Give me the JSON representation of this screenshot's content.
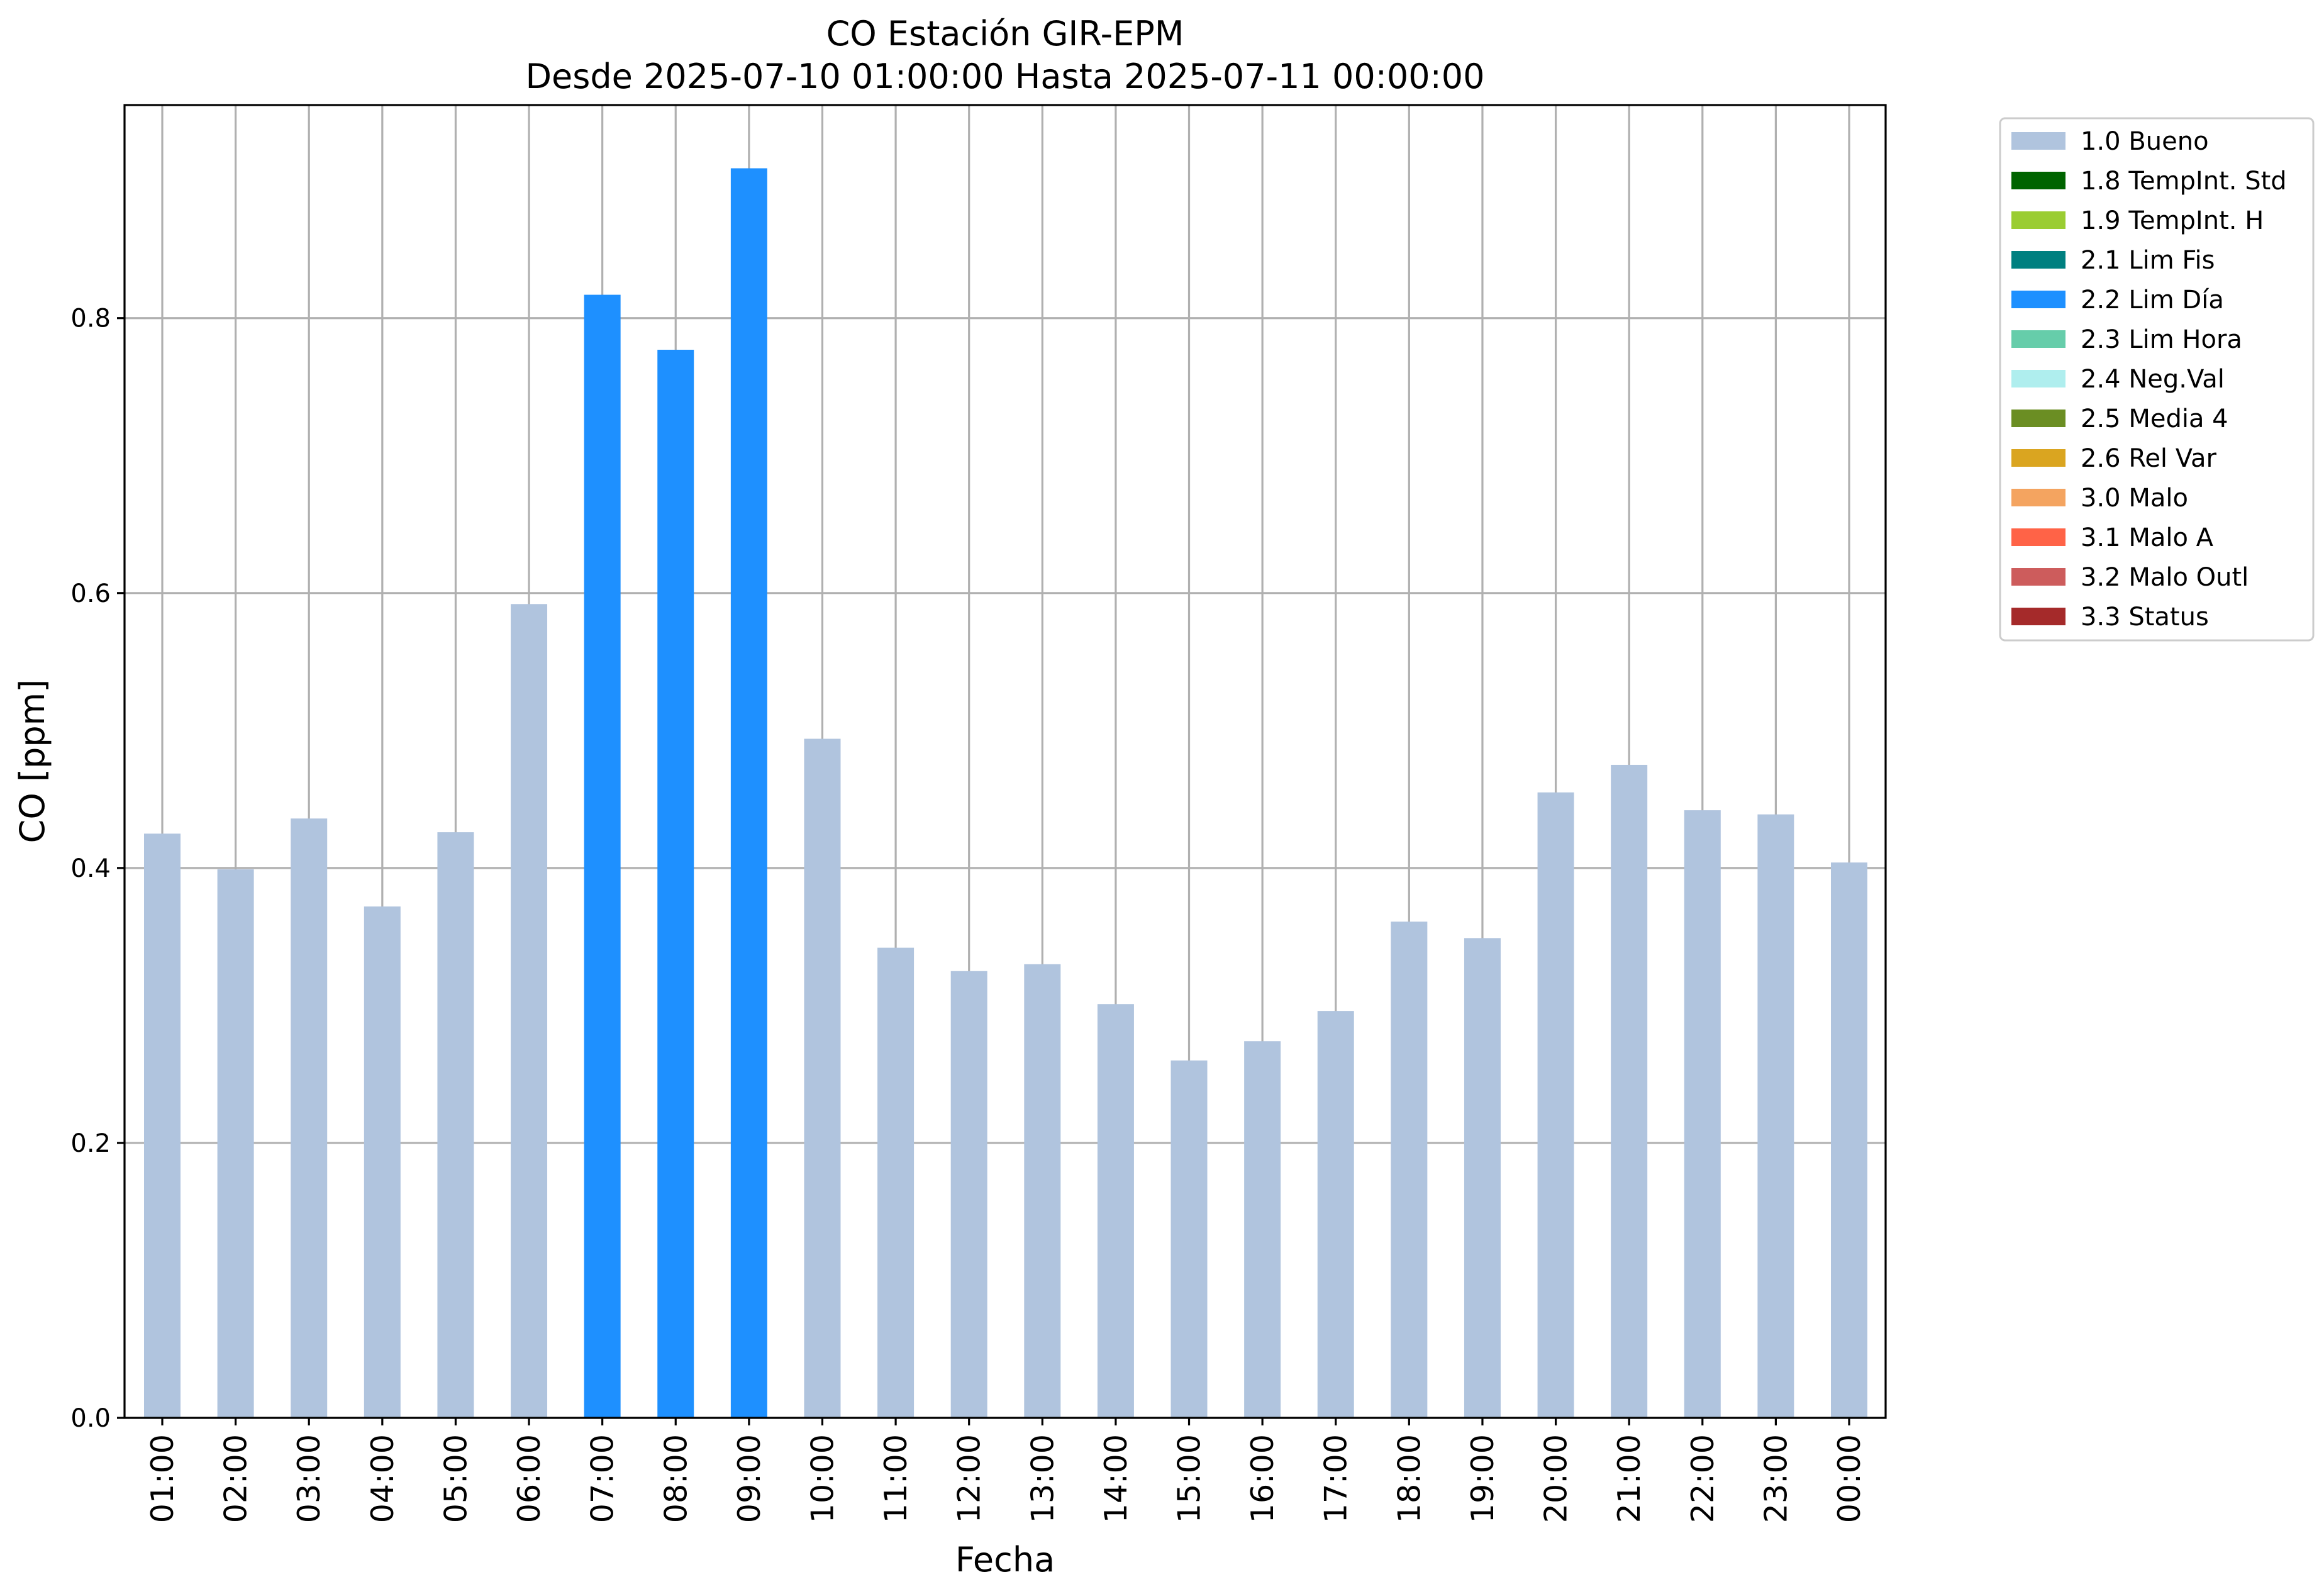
{
  "chart_data": {
    "type": "bar",
    "title": "CO Estación GIR-EPM",
    "subtitle": "Desde 2025-07-10 01:00:00 Hasta 2025-07-11 00:00:00",
    "xlabel": "Fecha",
    "ylabel": "CO [ppm]",
    "ylim": [
      0,
      0.955
    ],
    "yticks": [
      "0.0",
      "0.2",
      "0.4",
      "0.6",
      "0.8"
    ],
    "grid": true,
    "legend_position": "outside-top-right",
    "categories": [
      "01:00",
      "02:00",
      "03:00",
      "04:00",
      "05:00",
      "06:00",
      "07:00",
      "08:00",
      "09:00",
      "10:00",
      "11:00",
      "12:00",
      "13:00",
      "14:00",
      "15:00",
      "16:00",
      "17:00",
      "18:00",
      "19:00",
      "20:00",
      "21:00",
      "22:00",
      "23:00",
      "00:00"
    ],
    "values": [
      0.425,
      0.399,
      0.436,
      0.372,
      0.426,
      0.592,
      0.817,
      0.777,
      0.909,
      0.494,
      0.342,
      0.325,
      0.33,
      0.301,
      0.26,
      0.274,
      0.296,
      0.361,
      0.349,
      0.455,
      0.475,
      0.442,
      0.439,
      0.404
    ],
    "flags": [
      "1.0",
      "1.0",
      "1.0",
      "1.0",
      "1.0",
      "1.0",
      "2.2",
      "2.2",
      "2.2",
      "1.0",
      "1.0",
      "1.0",
      "1.0",
      "1.0",
      "1.0",
      "1.0",
      "1.0",
      "1.0",
      "1.0",
      "1.0",
      "1.0",
      "1.0",
      "1.0",
      "1.0"
    ],
    "legend": [
      {
        "code": "1.0",
        "label": "1.0 Bueno",
        "color": "#b0c4de"
      },
      {
        "code": "1.8",
        "label": "1.8 TempInt. Std",
        "color": "#006400"
      },
      {
        "code": "1.9",
        "label": "1.9 TempInt. H",
        "color": "#9acd32"
      },
      {
        "code": "2.1",
        "label": "2.1 Lim Fis",
        "color": "#008080"
      },
      {
        "code": "2.2",
        "label": "2.2 Lim Día",
        "color": "#1e90ff"
      },
      {
        "code": "2.3",
        "label": "2.3 Lim Hora",
        "color": "#66cdaa"
      },
      {
        "code": "2.4",
        "label": "2.4 Neg.Val",
        "color": "#afeeee"
      },
      {
        "code": "2.5",
        "label": "2.5 Media 4",
        "color": "#6b8e23"
      },
      {
        "code": "2.6",
        "label": "2.6 Rel Var",
        "color": "#daa520"
      },
      {
        "code": "3.0",
        "label": "3.0 Malo",
        "color": "#f4a460"
      },
      {
        "code": "3.1",
        "label": "3.1 Malo A",
        "color": "#ff6347"
      },
      {
        "code": "3.2",
        "label": "3.2 Malo Outl",
        "color": "#cd5c5c"
      },
      {
        "code": "3.3",
        "label": "3.3 Status",
        "color": "#a52a2a"
      }
    ]
  }
}
